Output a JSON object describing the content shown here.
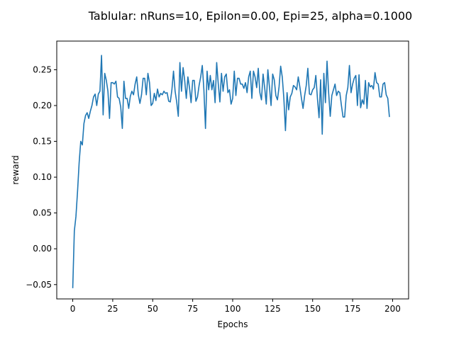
{
  "chart_data": {
    "type": "line",
    "title": "Tablular: nRuns=10, Epilon=0.00, Epi=25, alpha=0.1000",
    "xlabel": "Epochs",
    "ylabel": "reward",
    "xlim": [
      -10,
      210
    ],
    "ylim": [
      -0.07,
      0.29
    ],
    "x_ticks": [
      0,
      25,
      50,
      75,
      100,
      125,
      150,
      175,
      200
    ],
    "y_ticks": [
      -0.05,
      0.0,
      0.05,
      0.1,
      0.15,
      0.2,
      0.25
    ],
    "y_tick_labels": [
      "−0.05",
      "0.00",
      "0.05",
      "0.10",
      "0.15",
      "0.20",
      "0.25"
    ],
    "x_tick_labels": [
      "0",
      "25",
      "50",
      "75",
      "100",
      "125",
      "150",
      "175",
      "200"
    ],
    "grid": false,
    "color": "#1f77b4",
    "series": [
      {
        "values": [
          -0.055,
          0.025,
          0.045,
          0.08,
          0.12,
          0.15,
          0.145,
          0.175,
          0.186,
          0.19,
          0.182,
          0.192,
          0.2,
          0.212,
          0.216,
          0.2,
          0.216,
          0.22,
          0.27,
          0.187,
          0.245,
          0.235,
          0.22,
          0.182,
          0.232,
          0.232,
          0.23,
          0.234,
          0.212,
          0.21,
          0.198,
          0.168,
          0.234,
          0.21,
          0.21,
          0.196,
          0.213,
          0.22,
          0.215,
          0.23,
          0.24,
          0.215,
          0.203,
          0.215,
          0.238,
          0.238,
          0.215,
          0.245,
          0.232,
          0.2,
          0.203,
          0.217,
          0.207,
          0.223,
          0.212,
          0.217,
          0.215,
          0.22,
          0.217,
          0.218,
          0.206,
          0.205,
          0.222,
          0.248,
          0.22,
          0.205,
          0.185,
          0.26,
          0.22,
          0.253,
          0.235,
          0.21,
          0.24,
          0.225,
          0.204,
          0.235,
          0.235,
          0.206,
          0.212,
          0.228,
          0.24,
          0.256,
          0.222,
          0.168,
          0.248,
          0.222,
          0.242,
          0.222,
          0.235,
          0.204,
          0.26,
          0.23,
          0.205,
          0.245,
          0.22,
          0.24,
          0.244,
          0.218,
          0.222,
          0.202,
          0.21,
          0.248,
          0.214,
          0.238,
          0.238,
          0.23,
          0.23,
          0.224,
          0.232,
          0.218,
          0.24,
          0.248,
          0.21,
          0.248,
          0.24,
          0.225,
          0.252,
          0.218,
          0.208,
          0.244,
          0.225,
          0.202,
          0.25,
          0.226,
          0.2,
          0.244,
          0.236,
          0.214,
          0.208,
          0.226,
          0.255,
          0.24,
          0.21,
          0.165,
          0.218,
          0.194,
          0.212,
          0.217,
          0.228,
          0.226,
          0.222,
          0.24,
          0.226,
          0.21,
          0.196,
          0.214,
          0.228,
          0.252,
          0.216,
          0.215,
          0.222,
          0.225,
          0.242,
          0.21,
          0.183,
          0.236,
          0.16,
          0.245,
          0.204,
          0.262,
          0.218,
          0.185,
          0.214,
          0.222,
          0.23,
          0.214,
          0.22,
          0.218,
          0.2,
          0.184,
          0.184,
          0.214,
          0.225,
          0.256,
          0.218,
          0.23,
          0.238,
          0.242,
          0.2,
          0.243,
          0.197,
          0.208,
          0.202,
          0.235,
          0.196,
          0.232,
          0.226,
          0.228,
          0.223,
          0.246,
          0.232,
          0.23,
          0.212,
          0.212,
          0.23,
          0.232,
          0.215,
          0.21,
          0.184
        ]
      }
    ]
  }
}
